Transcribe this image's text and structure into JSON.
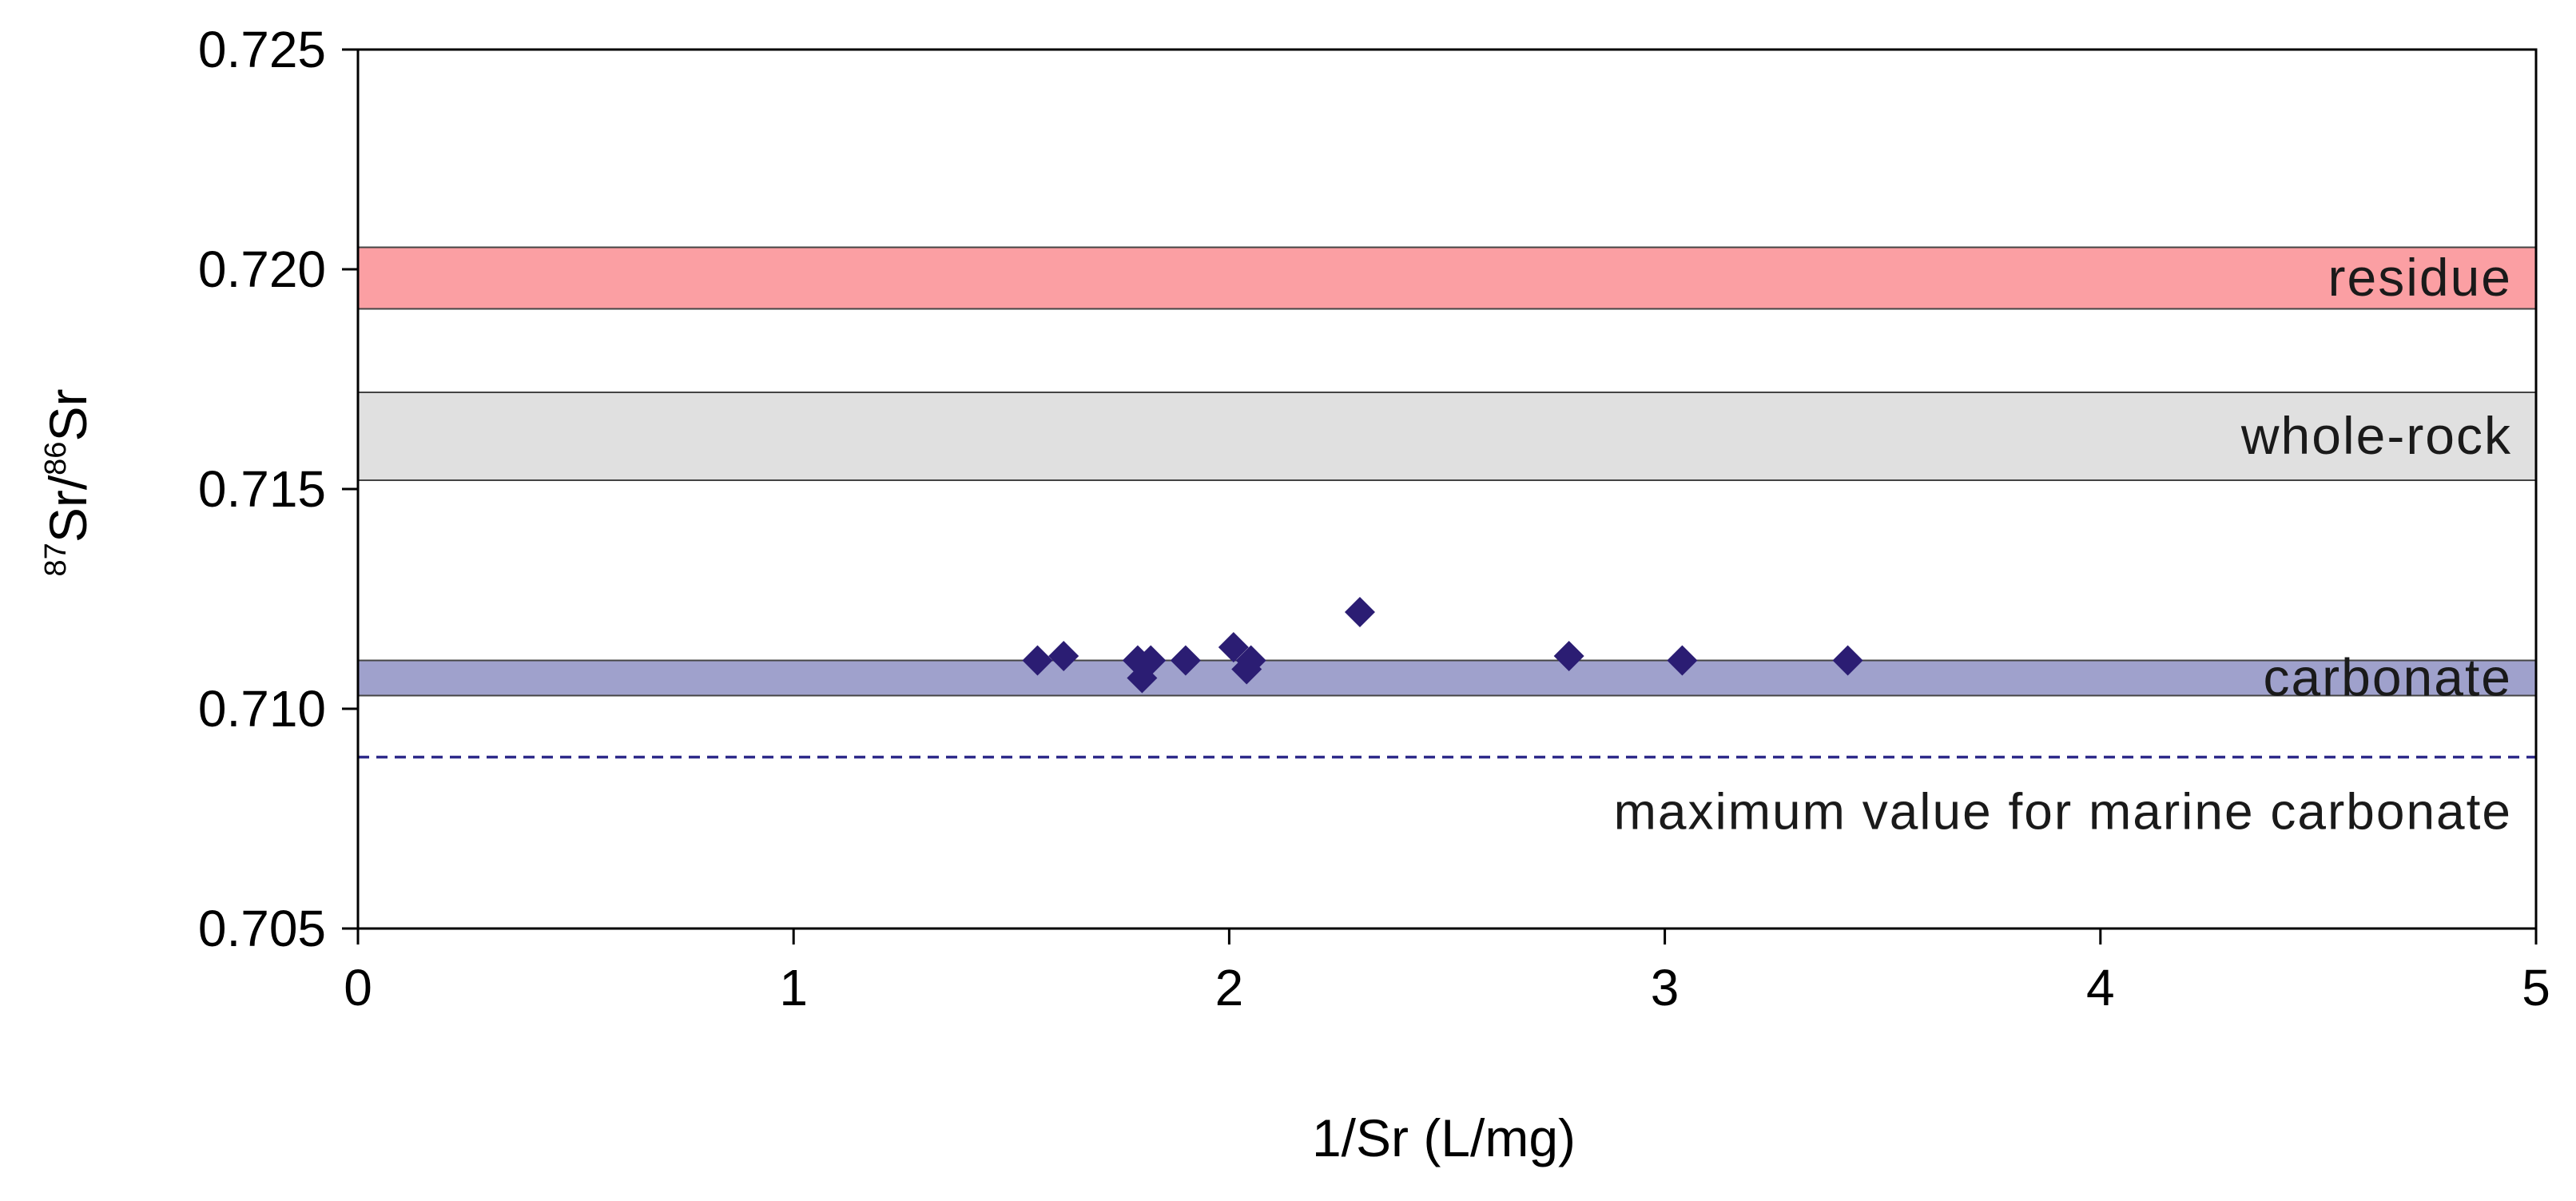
{
  "chart_data": {
    "type": "scatter",
    "xlabel": "1/Sr (L/mg)",
    "ylabel": {
      "sup1": "87",
      "part1": "Sr/",
      "sup2": "86",
      "part2": "Sr"
    },
    "xlim": [
      0,
      5
    ],
    "ylim": [
      0.705,
      0.725
    ],
    "x_ticks": [
      "0",
      "1",
      "2",
      "3",
      "4",
      "5"
    ],
    "y_ticks": [
      "0.705",
      "0.710",
      "0.715",
      "0.720",
      "0.725"
    ],
    "grid": false,
    "bands": [
      {
        "label": "residue",
        "y_min": 0.7191,
        "y_max": 0.7205,
        "color": "#fb9fa3"
      },
      {
        "label": "whole-rock",
        "y_min": 0.7152,
        "y_max": 0.7172,
        "color": "#e0e0e0"
      },
      {
        "label": "carbonate",
        "y_min": 0.7103,
        "y_max": 0.7111,
        "color": "#9fa1cc"
      }
    ],
    "reference_line": {
      "label": "maximum value for marine carbonate",
      "y": 0.7089,
      "style": "dashed",
      "color": "#2e2a8a"
    },
    "series": [
      {
        "marker": "diamond",
        "color": "#2b1d73",
        "points": [
          {
            "x": 1.56,
            "y": 0.7111
          },
          {
            "x": 1.62,
            "y": 0.7112
          },
          {
            "x": 1.79,
            "y": 0.7111
          },
          {
            "x": 1.8,
            "y": 0.7107
          },
          {
            "x": 1.82,
            "y": 0.7111
          },
          {
            "x": 1.9,
            "y": 0.7111
          },
          {
            "x": 2.01,
            "y": 0.7114
          },
          {
            "x": 2.04,
            "y": 0.7109
          },
          {
            "x": 2.05,
            "y": 0.7111
          },
          {
            "x": 2.3,
            "y": 0.7122
          },
          {
            "x": 2.78,
            "y": 0.7112
          },
          {
            "x": 3.04,
            "y": 0.7111
          },
          {
            "x": 3.42,
            "y": 0.7111
          }
        ]
      }
    ]
  }
}
